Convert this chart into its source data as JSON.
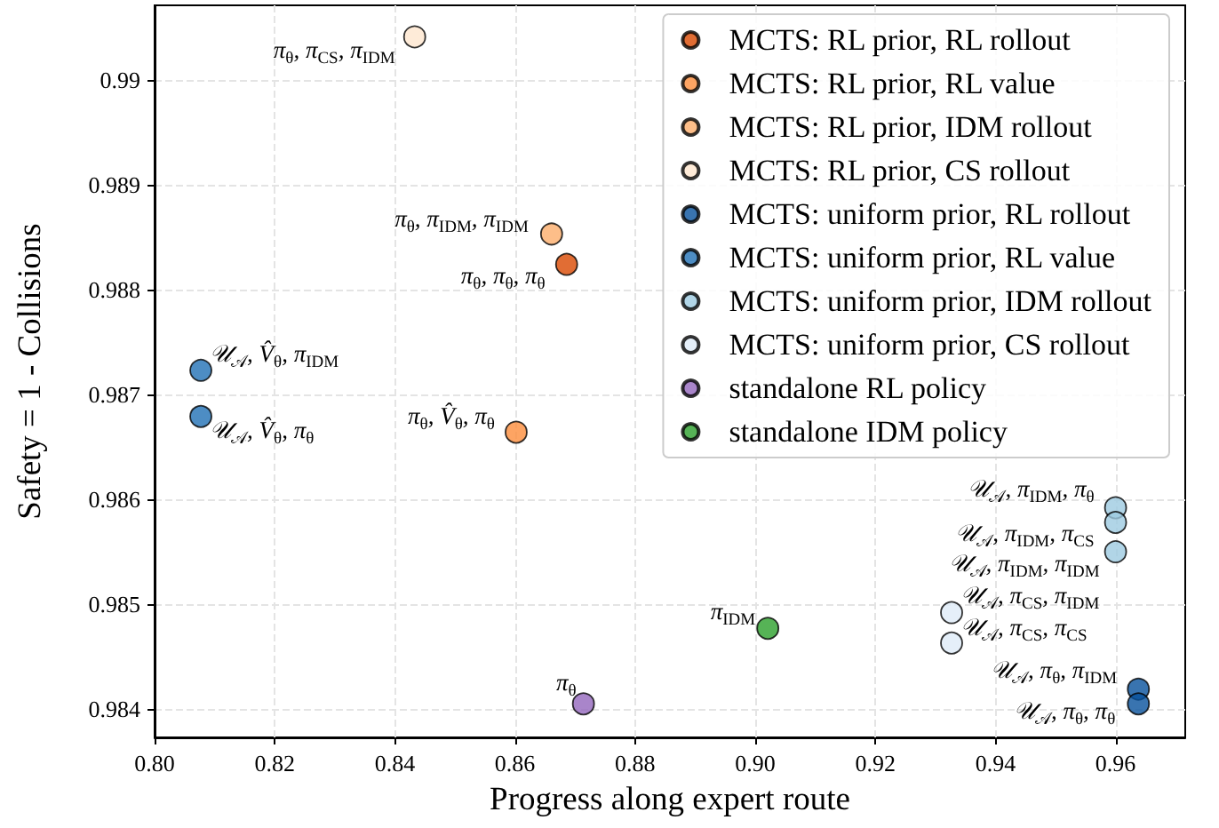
{
  "chart_data": {
    "type": "scatter",
    "xlabel": "Progress along expert route",
    "ylabel": "Safety = 1 - Collisions",
    "xlim": [
      0.8,
      0.9716
    ],
    "ylim": [
      0.98373,
      0.99071
    ],
    "xticks": [
      {
        "value": 0.8,
        "label": "0.80"
      },
      {
        "value": 0.82,
        "label": "0.82"
      },
      {
        "value": 0.84,
        "label": "0.84"
      },
      {
        "value": 0.86,
        "label": "0.86"
      },
      {
        "value": 0.88,
        "label": "0.88"
      },
      {
        "value": 0.9,
        "label": "0.90"
      },
      {
        "value": 0.92,
        "label": "0.92"
      },
      {
        "value": 0.94,
        "label": "0.94"
      },
      {
        "value": 0.96,
        "label": "0.96"
      }
    ],
    "yticks": [
      0.984,
      0.985,
      0.986,
      0.987,
      0.988,
      0.989,
      0.99
    ],
    "grid": true,
    "legend": "top right",
    "marker": "circle",
    "series": [
      {
        "name": "MCTS: RL prior, RL rollout",
        "color": "#d94801",
        "x": [
          0.8686
        ],
        "values": [
          0.98824
        ]
      },
      {
        "name": "MCTS: RL prior, RL value",
        "color": "#fd8d3c",
        "x": [
          0.8602
        ],
        "values": [
          0.98664
        ]
      },
      {
        "name": "MCTS: RL prior, IDM rollout",
        "color": "#fdae6b",
        "x": [
          0.8661
        ],
        "values": [
          0.98853
        ]
      },
      {
        "name": "MCTS: RL prior, CS rollout",
        "color": "#fee6ce",
        "x": [
          0.8433
        ],
        "values": [
          0.99041
        ]
      },
      {
        "name": "MCTS: uniform prior, RL rollout",
        "color": "#08519c",
        "x": [
          0.9638,
          0.9638
        ],
        "values": [
          0.98419,
          0.98405
        ]
      },
      {
        "name": "MCTS: uniform prior, RL value",
        "color": "#2171b5",
        "x": [
          0.8077,
          0.8077
        ],
        "values": [
          0.98723,
          0.98679
        ]
      },
      {
        "name": "MCTS: uniform prior, IDM rollout",
        "color": "#9ecae1",
        "x": [
          0.96,
          0.96,
          0.96
        ],
        "values": [
          0.98592,
          0.98578,
          0.9855
        ]
      },
      {
        "name": "MCTS: uniform prior, CS rollout",
        "color": "#deebf7",
        "x": [
          0.9327,
          0.9327
        ],
        "values": [
          0.98492,
          0.98463
        ]
      },
      {
        "name": "standalone RL policy",
        "color": "#9467bd",
        "x": [
          0.8714
        ],
        "values": [
          0.98405
        ]
      },
      {
        "name": "standalone IDM policy",
        "color": "#2ca02c",
        "x": [
          0.9021
        ],
        "values": [
          0.98477
        ]
      }
    ],
    "annotations": [
      {
        "text": "π$_{θ}$, π$_{CS}$, π$_{IDM}$",
        "x": 0.8433,
        "y": 0.99041
      },
      {
        "text": "π$_{θ}$, π$_{IDM}$, π$_{IDM}$",
        "x": 0.8661,
        "y": 0.98853
      },
      {
        "text": "π$_{θ}$, π$_{θ}$, π$_{θ}$",
        "x": 0.8686,
        "y": 0.98824
      },
      {
        "text": "π$_{θ}$, V̂$_{θ}$, π$_{θ}$",
        "x": 0.8602,
        "y": 0.98664
      },
      {
        "text": "𝒰$_{𝒜}$, V̂$_{θ}$, π$_{IDM}$",
        "x": 0.8077,
        "y": 0.98723
      },
      {
        "text": "𝒰$_{𝒜}$, V̂$_{θ}$, π$_{θ}$",
        "x": 0.8077,
        "y": 0.98679
      },
      {
        "text": "π$_{θ}$",
        "x": 0.8714,
        "y": 0.98405
      },
      {
        "text": "π$_{IDM}$",
        "x": 0.9021,
        "y": 0.98477
      },
      {
        "text": "𝒰$_{𝒜}$, π$_{CS}$, π$_{IDM}$",
        "x": 0.9327,
        "y": 0.98492
      },
      {
        "text": "𝒰$_{𝒜}$, π$_{CS}$, π$_{CS}$",
        "x": 0.9327,
        "y": 0.98463
      },
      {
        "text": "𝒰$_{𝒜}$, π$_{IDM}$, π$_{θ}$",
        "x": 0.96,
        "y": 0.98592
      },
      {
        "text": "𝒰$_{𝒜}$, π$_{IDM}$, π$_{CS}$",
        "x": 0.96,
        "y": 0.98578
      },
      {
        "text": "𝒰$_{𝒜}$, π$_{IDM}$, π$_{IDM}$",
        "x": 0.96,
        "y": 0.9855
      },
      {
        "text": "𝒰$_{𝒜}$, π$_{θ}$, π$_{IDM}$",
        "x": 0.9638,
        "y": 0.98419
      },
      {
        "text": "𝒰$_{𝒜}$, π$_{θ}$, π$_{θ}$",
        "x": 0.9638,
        "y": 0.98405
      }
    ]
  }
}
